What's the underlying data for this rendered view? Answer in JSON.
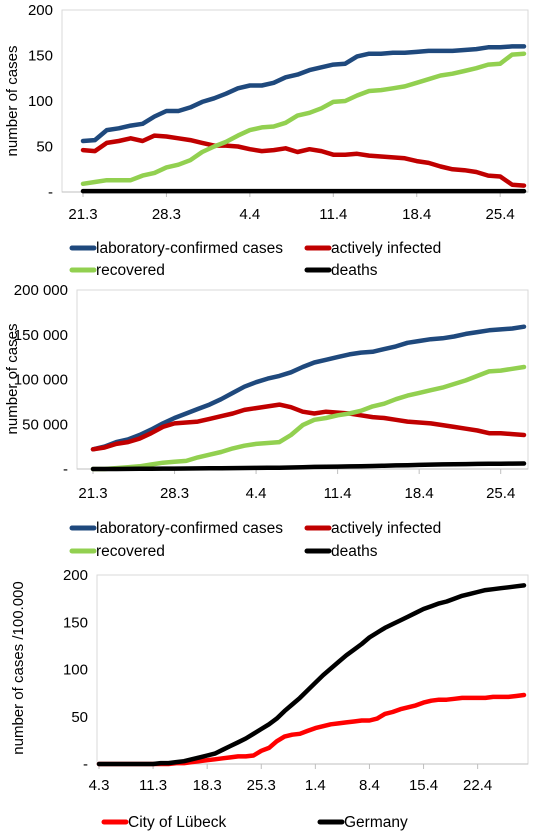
{
  "chart_data": [
    {
      "type": "line",
      "ylabel": "number of cases",
      "xlabel": "",
      "ylim": [
        0,
        200
      ],
      "yticks": [
        {
          "value": 0,
          "label": "-"
        },
        {
          "value": 50,
          "label": "50"
        },
        {
          "value": 100,
          "label": "100"
        },
        {
          "value": 150,
          "label": "150"
        },
        {
          "value": 200,
          "label": "200"
        }
      ],
      "x_start": "21.3",
      "x_count": 38,
      "xticks": [
        {
          "index": 0,
          "label": "21.3"
        },
        {
          "index": 7,
          "label": "28.3"
        },
        {
          "index": 14,
          "label": "4.4"
        },
        {
          "index": 21,
          "label": "11.4"
        },
        {
          "index": 28,
          "label": "18.4"
        },
        {
          "index": 35,
          "label": "25.4"
        }
      ],
      "grid": false,
      "legend_position": "bottom",
      "series": [
        {
          "name": "laboratory-confirmed cases",
          "color": "#1f497d",
          "values": [
            56,
            57,
            68,
            70,
            73,
            75,
            83,
            89,
            89,
            93,
            99,
            103,
            108,
            114,
            117,
            117,
            120,
            126,
            129,
            134,
            137,
            140,
            141,
            149,
            152,
            152,
            153,
            153,
            154,
            155,
            155,
            155,
            156,
            157,
            159,
            159,
            160,
            160
          ]
        },
        {
          "name": "actively infected",
          "color": "#c00000",
          "values": [
            46,
            45,
            54,
            56,
            59,
            56,
            62,
            61,
            59,
            57,
            54,
            51,
            51,
            50,
            47,
            45,
            46,
            48,
            44,
            47,
            45,
            41,
            41,
            42,
            40,
            39,
            38,
            37,
            34,
            32,
            28,
            25,
            24,
            22,
            18,
            17,
            8,
            7
          ]
        },
        {
          "name": "recovered",
          "color": "#92d050",
          "values": [
            9,
            11,
            13,
            13,
            13,
            18,
            21,
            27,
            30,
            35,
            44,
            50,
            55,
            62,
            68,
            71,
            72,
            76,
            84,
            87,
            92,
            99,
            100,
            106,
            111,
            112,
            114,
            116,
            120,
            124,
            128,
            130,
            133,
            136,
            140,
            141,
            151,
            152
          ]
        },
        {
          "name": "deaths",
          "color": "#000000",
          "values": [
            1,
            1,
            1,
            1,
            1,
            1,
            1,
            1,
            1,
            1,
            1,
            1,
            1,
            1,
            1,
            1,
            1,
            1,
            1,
            1,
            1,
            1,
            1,
            1,
            1,
            1,
            1,
            1,
            1,
            1,
            1,
            1,
            1,
            1,
            1,
            1,
            1,
            1
          ]
        }
      ]
    },
    {
      "type": "line",
      "ylabel": "number of cases",
      "xlabel": "",
      "ylim": [
        0,
        200000
      ],
      "yticks": [
        {
          "value": 0,
          "label": "-"
        },
        {
          "value": 50000,
          "label": "50 000"
        },
        {
          "value": 100000,
          "label": "100 000"
        },
        {
          "value": 150000,
          "label": "150 000"
        },
        {
          "value": 200000,
          "label": "200 000"
        }
      ],
      "x_start": "21.3",
      "x_count": 38,
      "xticks": [
        {
          "index": 0,
          "label": "21.3"
        },
        {
          "index": 7,
          "label": "28.3"
        },
        {
          "index": 14,
          "label": "4.4"
        },
        {
          "index": 21,
          "label": "11.4"
        },
        {
          "index": 28,
          "label": "18.4"
        },
        {
          "index": 35,
          "label": "25.4"
        }
      ],
      "grid": false,
      "legend_position": "bottom",
      "series": [
        {
          "name": "laboratory-confirmed cases",
          "color": "#1f497d",
          "values": [
            22000,
            25000,
            30000,
            33000,
            38000,
            44000,
            51000,
            57000,
            62000,
            67000,
            72000,
            78000,
            85000,
            92000,
            97000,
            101000,
            104000,
            108000,
            114000,
            119000,
            122000,
            125000,
            128000,
            130000,
            131000,
            134000,
            137000,
            141000,
            143000,
            145000,
            146000,
            148000,
            151000,
            153000,
            155000,
            156000,
            157000,
            159000
          ]
        },
        {
          "name": "actively infected",
          "color": "#c00000",
          "values": [
            22000,
            24000,
            28000,
            30000,
            34000,
            40000,
            47000,
            51000,
            52000,
            53000,
            56000,
            59000,
            62000,
            66000,
            68000,
            70000,
            72000,
            69000,
            64000,
            62000,
            64000,
            63000,
            62000,
            60000,
            58000,
            57000,
            55000,
            53000,
            52000,
            51000,
            49000,
            47000,
            45000,
            43000,
            40000,
            40000,
            39000,
            38000
          ]
        },
        {
          "name": "recovered",
          "color": "#92d050",
          "values": [
            0,
            0,
            1000,
            2000,
            3000,
            5000,
            7000,
            8000,
            9000,
            13000,
            16000,
            19000,
            23000,
            26000,
            28000,
            29000,
            30000,
            38000,
            49000,
            55000,
            57000,
            60000,
            62000,
            65000,
            70000,
            73000,
            78000,
            82000,
            85000,
            88000,
            91000,
            95000,
            99000,
            104000,
            109000,
            110000,
            112000,
            114000
          ]
        },
        {
          "name": "deaths",
          "color": "#000000",
          "values": [
            0,
            0,
            0,
            100,
            200,
            300,
            400,
            500,
            600,
            700,
            800,
            900,
            1000,
            1100,
            1200,
            1300,
            1400,
            1700,
            2000,
            2300,
            2500,
            2700,
            2900,
            3100,
            3400,
            3700,
            4000,
            4300,
            4600,
            4900,
            5100,
            5300,
            5500,
            5700,
            5800,
            5900,
            6000,
            6100
          ]
        }
      ]
    },
    {
      "type": "line",
      "ylabel": "number of cases /100.000",
      "xlabel": "",
      "ylim": [
        0,
        200
      ],
      "yticks": [
        {
          "value": 0,
          "label": "-"
        },
        {
          "value": 50,
          "label": "50"
        },
        {
          "value": 100,
          "label": "100"
        },
        {
          "value": 150,
          "label": "150"
        },
        {
          "value": 200,
          "label": "200"
        }
      ],
      "x_start": "4.3",
      "x_count": 56,
      "xticks": [
        {
          "index": 0,
          "label": "4.3"
        },
        {
          "index": 7,
          "label": "11.3"
        },
        {
          "index": 14,
          "label": "18.3"
        },
        {
          "index": 21,
          "label": "25.3"
        },
        {
          "index": 28,
          "label": "1.4"
        },
        {
          "index": 35,
          "label": "8.4"
        },
        {
          "index": 42,
          "label": "15.4"
        },
        {
          "index": 49,
          "label": "22.4"
        }
      ],
      "grid": false,
      "legend_position": "bottom",
      "series": [
        {
          "name": "City of Lübeck",
          "color": "#ff0000",
          "values": [
            0,
            0,
            0,
            0,
            0,
            0,
            0,
            0,
            0,
            0,
            1,
            1,
            2,
            3,
            4,
            5,
            6,
            7,
            8,
            8,
            9,
            14,
            17,
            24,
            29,
            31,
            32,
            35,
            38,
            40,
            42,
            43,
            44,
            45,
            46,
            46,
            48,
            53,
            55,
            58,
            60,
            62,
            65,
            67,
            68,
            68,
            69,
            70,
            70,
            70,
            70,
            71,
            71,
            71,
            72,
            73
          ]
        },
        {
          "name": "Germany",
          "color": "#000000",
          "values": [
            0,
            0,
            0,
            0,
            0,
            0,
            0,
            0,
            1,
            1,
            2,
            3,
            5,
            7,
            9,
            11,
            15,
            19,
            23,
            27,
            32,
            37,
            42,
            48,
            56,
            63,
            70,
            78,
            86,
            94,
            101,
            108,
            115,
            121,
            127,
            134,
            139,
            144,
            148,
            152,
            156,
            160,
            164,
            167,
            170,
            172,
            175,
            178,
            180,
            182,
            184,
            185,
            186,
            187,
            188,
            189
          ]
        }
      ]
    }
  ]
}
